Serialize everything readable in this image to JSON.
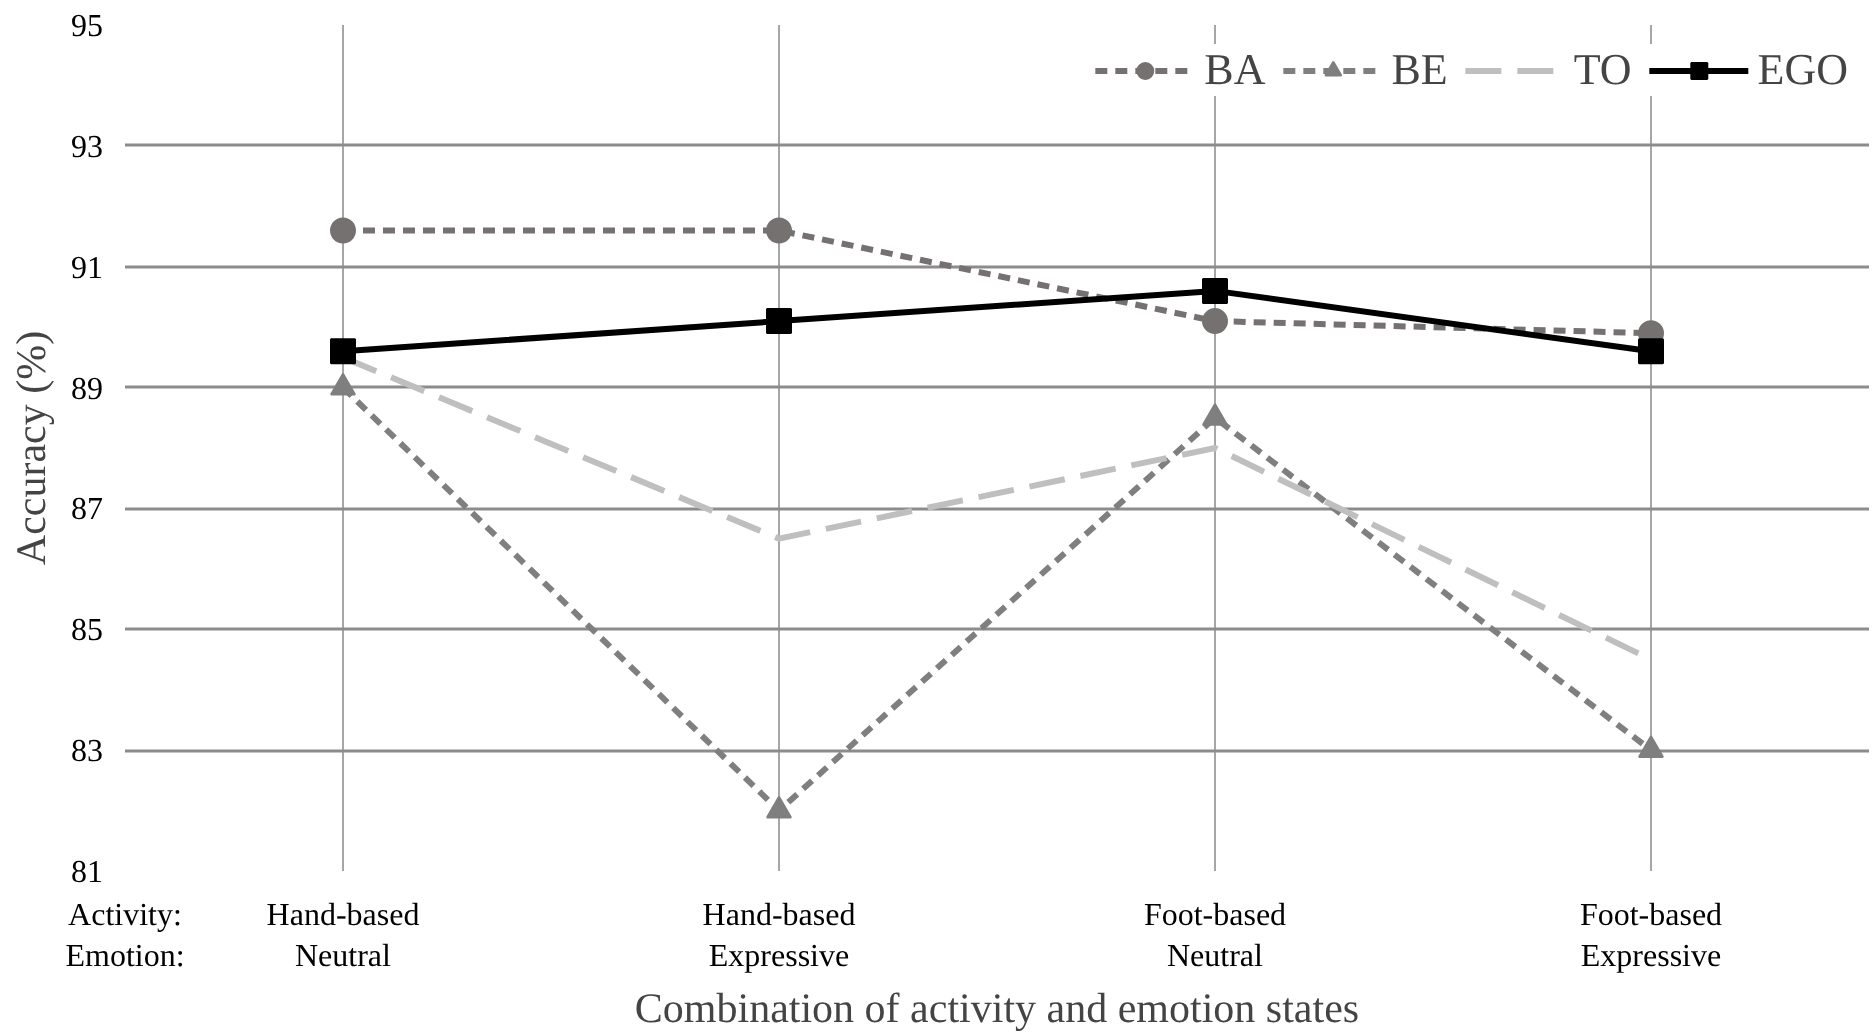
{
  "chart_data": {
    "type": "line",
    "xlabel": "Combination of activity and emotion states",
    "ylabel": "Accuracy (%)",
    "categories": [
      "Hand-based\nNeutral",
      "Hand-based\nExpressive",
      "Foot-based\nNeutral",
      "Foot-based\nExpressive"
    ],
    "series": [
      {
        "name": "BA",
        "color": "#767171",
        "marker": "circle",
        "line_style": "dashed",
        "values": [
          91.6,
          91.6,
          90.1,
          89.9
        ]
      },
      {
        "name": "BE",
        "color": "#7f7f7f",
        "marker": "triangle",
        "line_style": "dashed",
        "values": [
          89.0,
          82.0,
          88.5,
          83.0
        ]
      },
      {
        "name": "TO",
        "color": "#bfbfbf",
        "marker": "none",
        "line_style": "long_dashed",
        "values": [
          89.5,
          86.5,
          88.0,
          84.5
        ]
      },
      {
        "name": "EGO",
        "color": "#000000",
        "marker": "square",
        "line_style": "solid",
        "values": [
          89.6,
          90.1,
          90.6,
          89.6
        ]
      }
    ],
    "ylim": [
      81,
      95
    ],
    "yticks": [
      81,
      83,
      85,
      87,
      89,
      91,
      93,
      95
    ],
    "grid": true,
    "legend": "top right",
    "annotations": [
      "Activity:",
      "Emotion:"
    ]
  }
}
